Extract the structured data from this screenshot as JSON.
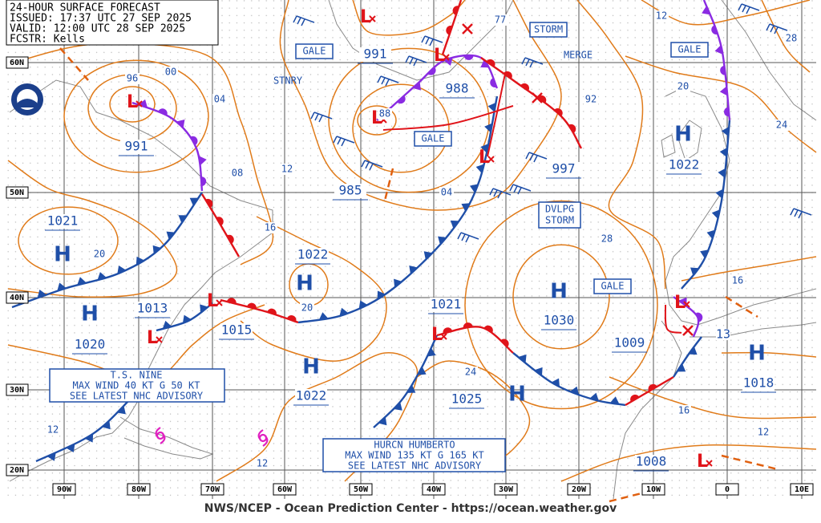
{
  "header": {
    "title": "24-HOUR SURFACE FORECAST",
    "issued": "ISSUED: 17:37 UTC 27 SEP 2025",
    "valid": "VALID: 12:00 UTC 28 SEP 2025",
    "forecaster": "FCSTR:  Kells"
  },
  "latitude_labels": [
    "60N",
    "50N",
    "40N",
    "30N",
    "20N"
  ],
  "longitude_labels": [
    "90W",
    "80W",
    "70W",
    "60W",
    "50W",
    "40W",
    "30W",
    "20W",
    "10W",
    "0",
    "10E"
  ],
  "pressure_centers": [
    {
      "symbol": "L",
      "pressure": "991"
    },
    {
      "symbol": "H",
      "pressure": "1021"
    },
    {
      "symbol": "H",
      "pressure": "1020"
    },
    {
      "symbol": "L",
      "pressure": "1013"
    },
    {
      "symbol": "L",
      "pressure": "1015"
    },
    {
      "symbol": "H",
      "pressure": "1022"
    },
    {
      "symbol": "H",
      "pressure": "1022"
    },
    {
      "symbol": "L",
      "pressure": "991"
    },
    {
      "symbol": "L",
      "pressure": "988"
    },
    {
      "symbol": "L",
      "pressure": "985"
    },
    {
      "symbol": "L",
      "pressure": "997"
    },
    {
      "symbol": "H",
      "pressure": "1030"
    },
    {
      "symbol": "L",
      "pressure": "1021"
    },
    {
      "symbol": "H",
      "pressure": "1025"
    },
    {
      "symbol": "H",
      "pressure": "1022"
    },
    {
      "symbol": "H",
      "pressure": "1018"
    },
    {
      "symbol": "L",
      "pressure": "1009"
    },
    {
      "symbol": "L",
      "pressure": "1008"
    }
  ],
  "isobar_labels": [
    "96",
    "00",
    "04",
    "08",
    "12",
    "16",
    "20",
    "20",
    "12",
    "12",
    "24",
    "28",
    "04",
    "88",
    "77",
    "92",
    "12",
    "20",
    "24",
    "28",
    "16",
    "16",
    "12",
    "13"
  ],
  "warnings": [
    "GALE",
    "STORM",
    "GALE",
    "GALE",
    "GALE",
    "DVLPG",
    "STORM"
  ],
  "annotations": [
    "STNRY",
    "MERGE"
  ],
  "advisories": [
    [
      "T.S. NINE",
      "MAX WIND 40 KT G 50 KT",
      "SEE LATEST NHC ADVISORY"
    ],
    [
      "HURCN HUMBERTO",
      "MAX WIND 135 KT G 165 KT",
      "SEE LATEST NHC ADVISORY"
    ]
  ],
  "footer": "NWS/NCEP - Ocean Prediction Center - https://ocean.weather.gov"
}
